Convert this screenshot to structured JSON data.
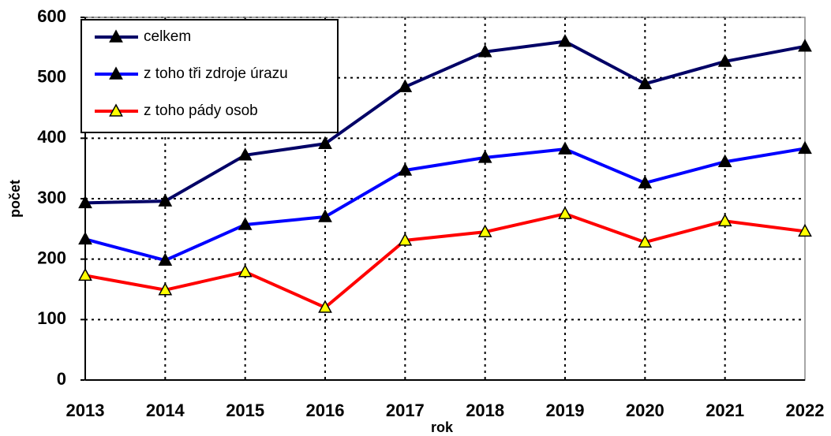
{
  "chart_data": {
    "type": "line",
    "x_label": "rok",
    "y_label": "počet",
    "categories": [
      "2013",
      "2014",
      "2015",
      "2016",
      "2017",
      "2018",
      "2019",
      "2020",
      "2021",
      "2022"
    ],
    "series": [
      {
        "name": "celkem",
        "color": "#000066",
        "marker_color": "#000000",
        "values": [
          293,
          296,
          372,
          391,
          485,
          543,
          560,
          490,
          527,
          552
        ]
      },
      {
        "name": "z toho tři zdroje úrazu",
        "color": "#0000ff",
        "marker_color": "#000000",
        "values": [
          233,
          198,
          257,
          270,
          347,
          368,
          382,
          326,
          361,
          383
        ]
      },
      {
        "name": "z toho pády osob",
        "color": "#ff0000",
        "marker_color": "#ffff00",
        "values": [
          173,
          149,
          179,
          120,
          231,
          245,
          275,
          228,
          263,
          246
        ]
      }
    ],
    "ylim": [
      0,
      600
    ],
    "yticks": [
      0,
      100,
      200,
      300,
      400,
      500,
      600
    ],
    "grid": true,
    "legend": "upper left"
  }
}
